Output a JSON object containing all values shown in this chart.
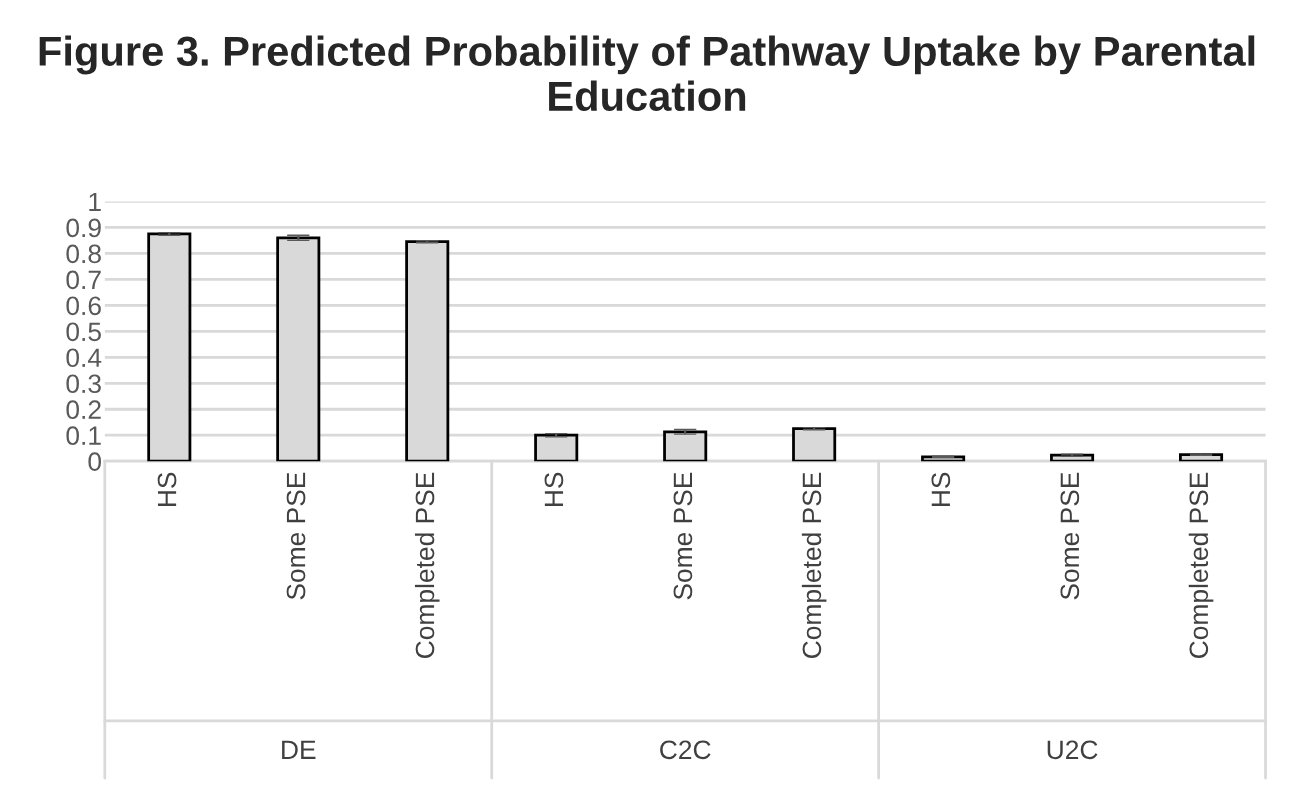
{
  "chart_data": {
    "type": "bar",
    "title": "Figure 3. Predicted Probability of Pathway Uptake by Parental Education",
    "categories": [
      "HS",
      "Some PSE",
      "Completed PSE",
      "HS",
      "Some PSE",
      "Completed PSE",
      "HS",
      "Some PSE",
      "Completed PSE"
    ],
    "values": [
      0.875,
      0.86,
      0.845,
      0.1,
      0.113,
      0.125,
      0.017,
      0.023,
      0.025
    ],
    "errors": [
      0.005,
      0.01,
      0.004,
      0.006,
      0.009,
      0.004,
      0.002,
      0.004,
      0.002
    ],
    "color": "#d9d9d9",
    "annotations": [
      "DE",
      "C2C",
      "U2C"
    ],
    "ylim": [
      0,
      1
    ],
    "yticks": [
      0,
      0.1,
      0.2,
      0.3,
      0.4,
      0.5,
      0.6,
      0.7,
      0.8,
      0.9,
      1
    ],
    "grid": "y",
    "legend": false
  }
}
